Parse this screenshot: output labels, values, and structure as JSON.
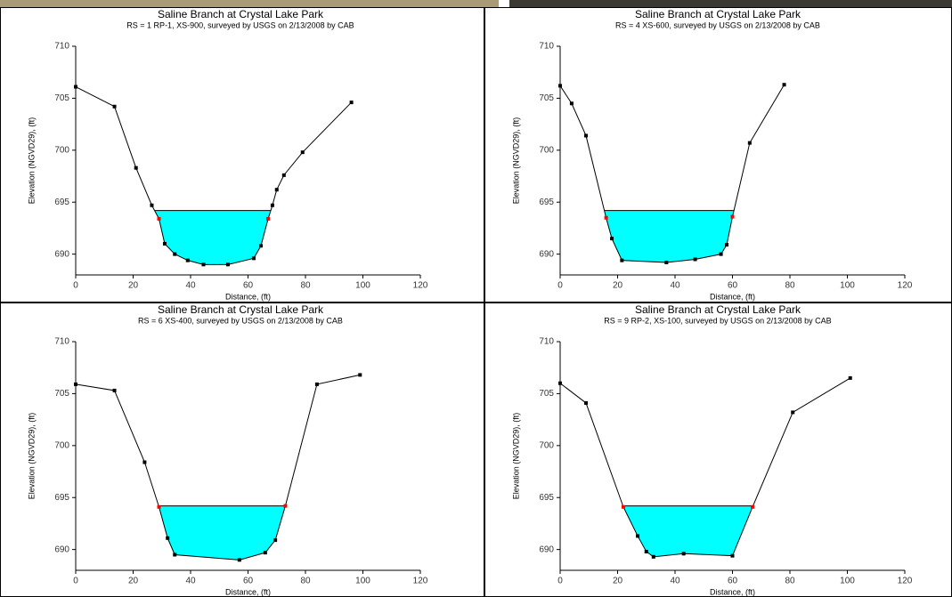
{
  "chart_data": [
    {
      "type": "line",
      "title": "Saline Branch at Crystal Lake Park",
      "subtitle": "RS = 1  RP-1, XS-900, surveyed by USGS on 2/13/2008 by CAB",
      "xlabel": "Distance, (ft)",
      "ylabel": "Elevation (NGVD29), (ft)",
      "x": [
        0,
        13.5,
        21,
        26.5,
        29,
        31,
        34.5,
        39,
        44.5,
        53,
        62,
        64.5,
        67,
        68.5,
        70,
        72.5,
        79,
        96
      ],
      "y": [
        706.1,
        704.2,
        698.3,
        694.7,
        693.4,
        691,
        690,
        689.4,
        689,
        689,
        689.6,
        690.8,
        693.4,
        694.7,
        696.2,
        697.6,
        699.8,
        704.6
      ],
      "marker_colors": [
        "#000000",
        "#000000",
        "#000000",
        "#000000",
        "#ff0000",
        "#000000",
        "#000000",
        "#000000",
        "#000000",
        "#000000",
        "#000000",
        "#000000",
        "#ff0000",
        "#000000",
        "#000000",
        "#000000",
        "#000000",
        "#000000"
      ],
      "water_surface": 694.2,
      "ground_color": "#000000",
      "water_color": "#00ffff",
      "xlim": [
        0,
        120
      ],
      "ylim": [
        688,
        710
      ],
      "xticks": [
        0,
        20,
        40,
        60,
        80,
        100,
        120
      ],
      "yticks": [
        690,
        695,
        700,
        705,
        710
      ]
    },
    {
      "type": "line",
      "title": "Saline Branch at Crystal Lake Park",
      "subtitle": "RS = 4  XS-600, surveyed by USGS on 2/13/2008 by CAB",
      "xlabel": "Distance, (ft)",
      "ylabel": "Elevation (NGVD29), (ft)",
      "x": [
        0,
        4,
        9,
        16,
        18,
        21.5,
        37,
        47,
        56,
        58,
        60,
        66,
        78
      ],
      "y": [
        706.2,
        704.5,
        701.4,
        693.5,
        691.5,
        689.4,
        689.2,
        689.5,
        690,
        690.9,
        693.6,
        700.7,
        706.3
      ],
      "marker_colors": [
        "#000000",
        "#000000",
        "#000000",
        "#ff0000",
        "#000000",
        "#000000",
        "#000000",
        "#000000",
        "#000000",
        "#000000",
        "#ff0000",
        "#000000",
        "#000000"
      ],
      "water_surface": 694.2,
      "ground_color": "#000000",
      "water_color": "#00ffff",
      "xlim": [
        0,
        120
      ],
      "ylim": [
        688,
        710
      ],
      "xticks": [
        0,
        20,
        40,
        60,
        80,
        100,
        120
      ],
      "yticks": [
        690,
        695,
        700,
        705,
        710
      ]
    },
    {
      "type": "line",
      "title": "Saline Branch at Crystal Lake Park",
      "subtitle": "RS = 6  XS-400, surveyed by USGS on 2/13/2008 by CAB",
      "xlabel": "Distance, (ft)",
      "ylabel": "Elevation (NGVD29), (ft)",
      "x": [
        0,
        13.5,
        24,
        29,
        32,
        34.5,
        57,
        66,
        69.5,
        73,
        84,
        99
      ],
      "y": [
        705.9,
        705.3,
        698.4,
        694.1,
        691.1,
        689.5,
        689,
        689.7,
        690.9,
        694.2,
        705.9,
        706.8
      ],
      "marker_colors": [
        "#000000",
        "#000000",
        "#000000",
        "#ff0000",
        "#000000",
        "#000000",
        "#000000",
        "#000000",
        "#000000",
        "#ff0000",
        "#000000",
        "#000000"
      ],
      "water_surface": 694.2,
      "ground_color": "#000000",
      "water_color": "#00ffff",
      "xlim": [
        0,
        120
      ],
      "ylim": [
        688,
        710
      ],
      "xticks": [
        0,
        20,
        40,
        60,
        80,
        100,
        120
      ],
      "yticks": [
        690,
        695,
        700,
        705,
        710
      ]
    },
    {
      "type": "line",
      "title": "Saline Branch at Crystal Lake Park",
      "subtitle": "RS = 9  RP-2, XS-100, surveyed by USGS on 2/13/2008 by CAB",
      "xlabel": "Distance, (ft)",
      "ylabel": "Elevation (NGVD29), (ft)",
      "x": [
        0,
        9,
        22,
        27,
        30,
        32.5,
        43,
        60,
        67,
        81,
        101
      ],
      "y": [
        706,
        704.1,
        694.1,
        691.3,
        689.8,
        689.3,
        689.6,
        689.4,
        694.1,
        703.2,
        706.5
      ],
      "marker_colors": [
        "#000000",
        "#000000",
        "#ff0000",
        "#000000",
        "#000000",
        "#000000",
        "#000000",
        "#000000",
        "#ff0000",
        "#000000",
        "#000000"
      ],
      "water_surface": 694.2,
      "ground_color": "#000000",
      "water_color": "#00ffff",
      "xlim": [
        0,
        120
      ],
      "ylim": [
        688,
        710
      ],
      "xticks": [
        0,
        20,
        40,
        60,
        80,
        100,
        120
      ],
      "yticks": [
        690,
        695,
        700,
        705,
        710
      ]
    }
  ]
}
